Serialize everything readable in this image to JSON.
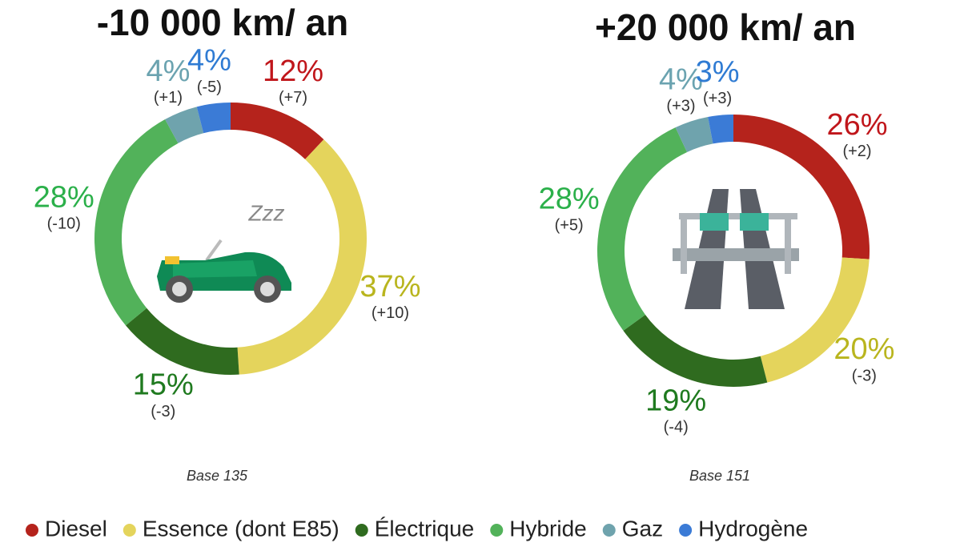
{
  "chart_data": [
    {
      "type": "donut",
      "title": "-10 000 km/ an",
      "categories": [
        "Diesel",
        "Essence (dont E85)",
        "Électrique",
        "Hybride",
        "Gaz",
        "Hydrogène"
      ],
      "values": [
        12,
        37,
        15,
        28,
        4,
        4
      ],
      "value_labels": [
        "12%",
        "37%",
        "15%",
        "28%",
        "4%",
        "4%"
      ],
      "change_labels": [
        "(+7)",
        "(+10)",
        "(-3)",
        "(-10)",
        "(+1)",
        "(-5)"
      ],
      "colors": [
        "#b5231c",
        "#e4d45c",
        "#2f6b1f",
        "#52b25a",
        "#6fa3ad",
        "#3b7bd6"
      ],
      "label_colors": [
        "#c0161b",
        "#b9b51e",
        "#1f7a1f",
        "#2bb04a",
        "#6ba3b0",
        "#2f7bd3"
      ],
      "icon_label": "Zzz",
      "note": "Base 135"
    },
    {
      "type": "donut",
      "title": "+20 000 km/ an",
      "categories": [
        "Diesel",
        "Essence (dont E85)",
        "Électrique",
        "Hybride",
        "Gaz",
        "Hydrogène"
      ],
      "values": [
        26,
        20,
        19,
        28,
        4,
        3
      ],
      "value_labels": [
        "26%",
        "20%",
        "19%",
        "28%",
        "4%",
        "3%"
      ],
      "change_labels": [
        "(+2)",
        "(-3)",
        "(-4)",
        "(+5)",
        "(+3)",
        "(+3)"
      ],
      "colors": [
        "#b5231c",
        "#e4d45c",
        "#2f6b1f",
        "#52b25a",
        "#6fa3ad",
        "#3b7bd6"
      ],
      "label_colors": [
        "#c0161b",
        "#b9b51e",
        "#1f7a1f",
        "#2bb04a",
        "#6ba3b0",
        "#2f7bd3"
      ],
      "note": "Base 151"
    }
  ]
}
